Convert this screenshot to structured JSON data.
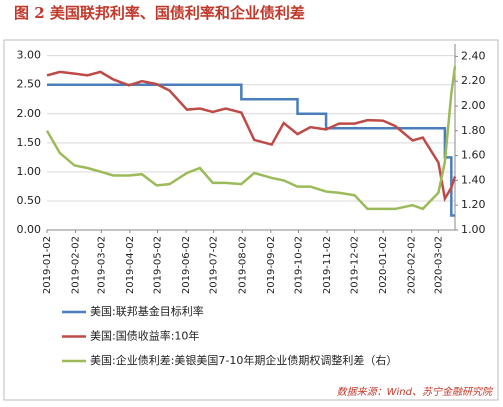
{
  "chart_data": {
    "type": "line",
    "title": "图 2  美国联邦利率、国债利率和企业债利差",
    "source": "数据来源：Wind、苏宁金融研究院",
    "x": [
      "2019-01-02",
      "2019-01-16",
      "2019-02-01",
      "2019-02-15",
      "2019-03-01",
      "2019-03-15",
      "2019-04-01",
      "2019-04-15",
      "2019-05-01",
      "2019-05-15",
      "2019-06-03",
      "2019-06-17",
      "2019-07-01",
      "2019-07-15",
      "2019-08-01",
      "2019-08-15",
      "2019-09-03",
      "2019-09-16",
      "2019-10-01",
      "2019-10-15",
      "2019-11-01",
      "2019-11-15",
      "2019-12-02",
      "2019-12-16",
      "2020-01-02",
      "2020-01-15",
      "2020-02-03",
      "2020-02-14",
      "2020-03-02",
      "2020-03-09",
      "2020-03-16",
      "2020-03-20"
    ],
    "xlim": [
      "2019-01-02",
      "2020-03-20"
    ],
    "xticks": [
      "2019-01-02",
      "2019-02-02",
      "2019-03-02",
      "2019-04-02",
      "2019-05-02",
      "2019-06-02",
      "2019-07-02",
      "2019-08-02",
      "2019-09-02",
      "2019-10-02",
      "2019-11-02",
      "2019-12-02",
      "2020-01-02",
      "2020-02-02",
      "2020-03-02"
    ],
    "ylim": [
      0,
      3.2
    ],
    "yticks": [
      {
        "value": 0,
        "label": "0.00"
      },
      {
        "value": 0.5,
        "label": "0.50"
      },
      {
        "value": 1,
        "label": "1.00"
      },
      {
        "value": 1.5,
        "label": "1.50"
      },
      {
        "value": 2,
        "label": "2.00"
      },
      {
        "value": 2.5,
        "label": "2.50"
      },
      {
        "value": 3,
        "label": "3.00"
      }
    ],
    "y2lim": [
      1.0,
      2.5
    ],
    "y2ticks": [
      {
        "value": 1,
        "label": "1.00"
      },
      {
        "value": 1.2,
        "label": "1.20"
      },
      {
        "value": 1.4,
        "label": "1.40"
      },
      {
        "value": 1.6,
        "label": "1.60"
      },
      {
        "value": 1.8,
        "label": "1.80"
      },
      {
        "value": 2,
        "label": "2.00"
      },
      {
        "value": 2.2,
        "label": "2.20"
      },
      {
        "value": 2.4,
        "label": "2.40"
      }
    ],
    "grid": true,
    "series": [
      {
        "name": "美国:联邦基金目标利率",
        "color": "#4a7ebb",
        "step": true,
        "values": [
          2.5,
          2.5,
          2.5,
          2.5,
          2.5,
          2.5,
          2.5,
          2.5,
          2.5,
          2.5,
          2.5,
          2.5,
          2.5,
          2.5,
          2.25,
          2.25,
          2.25,
          2.25,
          2.0,
          2.0,
          1.75,
          1.75,
          1.75,
          1.75,
          1.75,
          1.75,
          1.75,
          1.75,
          1.75,
          1.25,
          0.25,
          0.25
        ]
      },
      {
        "name": "美国:国债收益率:10年",
        "color": "#be4b48",
        "values": [
          2.66,
          2.72,
          2.69,
          2.66,
          2.72,
          2.59,
          2.49,
          2.56,
          2.51,
          2.4,
          2.07,
          2.09,
          2.03,
          2.09,
          2.02,
          1.55,
          1.47,
          1.84,
          1.65,
          1.77,
          1.73,
          1.83,
          1.83,
          1.89,
          1.88,
          1.79,
          1.54,
          1.59,
          1.16,
          0.54,
          0.73,
          0.92
        ]
      },
      {
        "name": "美国:企业债利差:美银美国7-10年期企业债期权调整利差（右）",
        "color": "#9bbb59",
        "axis": "y2",
        "values": [
          1.8,
          1.62,
          1.52,
          1.5,
          1.47,
          1.44,
          1.44,
          1.45,
          1.36,
          1.37,
          1.46,
          1.5,
          1.38,
          1.38,
          1.37,
          1.46,
          1.42,
          1.4,
          1.35,
          1.35,
          1.31,
          1.3,
          1.28,
          1.17,
          1.17,
          1.17,
          1.2,
          1.17,
          1.3,
          1.55,
          2.1,
          2.32
        ]
      }
    ]
  }
}
